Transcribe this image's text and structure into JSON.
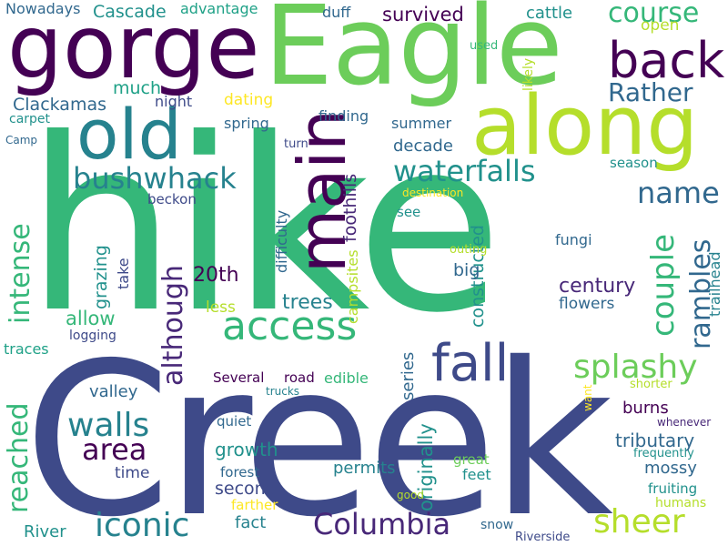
{
  "words": [
    {
      "id": "hike",
      "text": "hike",
      "color": "#35b779"
    },
    {
      "id": "creek",
      "text": "Creek",
      "color": "#3e4a89"
    },
    {
      "id": "eagle",
      "text": "Eagle",
      "color": "#6ccd5a"
    },
    {
      "id": "gorge",
      "text": "gorge",
      "color": "#440154"
    },
    {
      "id": "along",
      "text": "along",
      "color": "#b5de2b"
    },
    {
      "id": "old",
      "text": "old",
      "color": "#26828e"
    },
    {
      "id": "main",
      "text": "main",
      "color": "#440154"
    },
    {
      "id": "back",
      "text": "back",
      "color": "#440154"
    },
    {
      "id": "access",
      "text": "access",
      "color": "#35b779"
    },
    {
      "id": "fall",
      "text": "fall",
      "color": "#3e4a89"
    },
    {
      "id": "course",
      "text": "course",
      "color": "#35b779"
    },
    {
      "id": "rather",
      "text": "Rather",
      "color": "#31688e"
    },
    {
      "id": "waterfalls",
      "text": "waterfalls",
      "color": "#21918c"
    },
    {
      "id": "bushwhack",
      "text": "bushwhack",
      "color": "#26828e"
    },
    {
      "id": "name",
      "text": "name",
      "color": "#31688e"
    },
    {
      "id": "splashy",
      "text": "splashy",
      "color": "#6ccd5a"
    },
    {
      "id": "iconic",
      "text": "iconic",
      "color": "#26828e"
    },
    {
      "id": "columbia",
      "text": "Columbia",
      "color": "#482878"
    },
    {
      "id": "sheer",
      "text": "sheer",
      "color": "#b5de2b"
    },
    {
      "id": "walls",
      "text": "walls",
      "color": "#26828e"
    },
    {
      "id": "area",
      "text": "area",
      "color": "#440154"
    },
    {
      "id": "couple",
      "text": "couple",
      "color": "#35b779"
    },
    {
      "id": "rambles",
      "text": "rambles",
      "color": "#31688e"
    },
    {
      "id": "intense",
      "text": "intense",
      "color": "#35b779"
    },
    {
      "id": "reached",
      "text": "reached",
      "color": "#35b779"
    },
    {
      "id": "although",
      "text": "although",
      "color": "#482878"
    },
    {
      "id": "survived",
      "text": "survived",
      "color": "#440154"
    },
    {
      "id": "cascade",
      "text": "Cascade",
      "color": "#21918c"
    },
    {
      "id": "clackamas",
      "text": "Clackamas",
      "color": "#31688e"
    },
    {
      "id": "much",
      "text": "much",
      "color": "#1fa187"
    },
    {
      "id": "nowadays",
      "text": "Nowadays",
      "color": "#31688e"
    },
    {
      "id": "advantage",
      "text": "advantage",
      "color": "#1fa187"
    },
    {
      "id": "duff",
      "text": "duff",
      "color": "#31688e"
    },
    {
      "id": "cattle",
      "text": "cattle",
      "color": "#21918c"
    },
    {
      "id": "open",
      "text": "open",
      "color": "#b5de2b"
    },
    {
      "id": "used",
      "text": "used",
      "color": "#35b779"
    },
    {
      "id": "likely",
      "text": "likely",
      "color": "#b5de2b"
    },
    {
      "id": "night",
      "text": "night",
      "color": "#3e4a89"
    },
    {
      "id": "dating",
      "text": "dating",
      "color": "#fde725"
    },
    {
      "id": "carpet",
      "text": "carpet",
      "color": "#21918c"
    },
    {
      "id": "finding",
      "text": "finding",
      "color": "#31688e"
    },
    {
      "id": "spring",
      "text": "spring",
      "color": "#31688e"
    },
    {
      "id": "summer",
      "text": "summer",
      "color": "#31688e"
    },
    {
      "id": "camp",
      "text": "Camp",
      "color": "#31688e"
    },
    {
      "id": "turn",
      "text": "turn",
      "color": "#3e4a89"
    },
    {
      "id": "decade",
      "text": "decade",
      "color": "#31688e"
    },
    {
      "id": "season",
      "text": "season",
      "color": "#21918c"
    },
    {
      "id": "destination",
      "text": "destination",
      "color": "#fde725"
    },
    {
      "id": "beckon",
      "text": "beckon",
      "color": "#3e4a89"
    },
    {
      "id": "difficulty",
      "text": "difficulty",
      "color": "#31688e"
    },
    {
      "id": "foothills",
      "text": "foothills",
      "color": "#482878"
    },
    {
      "id": "see",
      "text": "see",
      "color": "#21918c"
    },
    {
      "id": "constructed",
      "text": "constructed",
      "color": "#21918c"
    },
    {
      "id": "fungi",
      "text": "fungi",
      "color": "#31688e"
    },
    {
      "id": "outing",
      "text": "outing",
      "color": "#b5de2b"
    },
    {
      "id": "grazing",
      "text": "grazing",
      "color": "#21918c"
    },
    {
      "id": "take",
      "text": "take",
      "color": "#3e4a89"
    },
    {
      "id": "20th",
      "text": "20th",
      "color": "#440154"
    },
    {
      "id": "big",
      "text": "big",
      "color": "#31688e"
    },
    {
      "id": "century",
      "text": "century",
      "color": "#482878"
    },
    {
      "id": "flowers",
      "text": "flowers",
      "color": "#31688e"
    },
    {
      "id": "trailhead",
      "text": "trailhead",
      "color": "#26828e"
    },
    {
      "id": "allow",
      "text": "allow",
      "color": "#35b779"
    },
    {
      "id": "trees",
      "text": "trees",
      "color": "#26828e"
    },
    {
      "id": "campsites",
      "text": "campsites",
      "color": "#b5de2b"
    },
    {
      "id": "less",
      "text": "less",
      "color": "#b5de2b"
    },
    {
      "id": "logging",
      "text": "logging",
      "color": "#3e4a89"
    },
    {
      "id": "traces",
      "text": "traces",
      "color": "#1fa187"
    },
    {
      "id": "several",
      "text": "Several",
      "color": "#440154"
    },
    {
      "id": "road",
      "text": "road",
      "color": "#440154"
    },
    {
      "id": "edible",
      "text": "edible",
      "color": "#35b779"
    },
    {
      "id": "series",
      "text": "series",
      "color": "#31688e"
    },
    {
      "id": "trucks",
      "text": "trucks",
      "color": "#26828e"
    },
    {
      "id": "want",
      "text": "want",
      "color": "#fde725"
    },
    {
      "id": "shorter",
      "text": "shorter",
      "color": "#b5de2b"
    },
    {
      "id": "valley",
      "text": "valley",
      "color": "#31688e"
    },
    {
      "id": "burns",
      "text": "burns",
      "color": "#440154"
    },
    {
      "id": "whenever",
      "text": "whenever",
      "color": "#482878"
    },
    {
      "id": "quiet",
      "text": "quiet",
      "color": "#31688e"
    },
    {
      "id": "tributary",
      "text": "tributary",
      "color": "#31688e"
    },
    {
      "id": "growth",
      "text": "growth",
      "color": "#21918c"
    },
    {
      "id": "frequently",
      "text": "frequently",
      "color": "#21918c"
    },
    {
      "id": "great",
      "text": "great",
      "color": "#6ccd5a"
    },
    {
      "id": "time",
      "text": "time",
      "color": "#3e4a89"
    },
    {
      "id": "forest",
      "text": "forest",
      "color": "#31688e"
    },
    {
      "id": "permits",
      "text": "permits",
      "color": "#26828e"
    },
    {
      "id": "originally",
      "text": "originally",
      "color": "#21918c"
    },
    {
      "id": "mossy",
      "text": "mossy",
      "color": "#31688e"
    },
    {
      "id": "fruiting",
      "text": "fruiting",
      "color": "#21918c"
    },
    {
      "id": "feet",
      "text": "feet",
      "color": "#21918c"
    },
    {
      "id": "second",
      "text": "second",
      "color": "#3e4a89"
    },
    {
      "id": "good",
      "text": "good",
      "color": "#b5de2b"
    },
    {
      "id": "humans",
      "text": "humans",
      "color": "#b5de2b"
    },
    {
      "id": "farther",
      "text": "farther",
      "color": "#fde725"
    },
    {
      "id": "fact",
      "text": "fact",
      "color": "#26828e"
    },
    {
      "id": "river",
      "text": "River",
      "color": "#21918c"
    },
    {
      "id": "snow",
      "text": "snow",
      "color": "#31688e"
    },
    {
      "id": "riverside",
      "text": "Riverside",
      "color": "#3e4a89"
    }
  ]
}
